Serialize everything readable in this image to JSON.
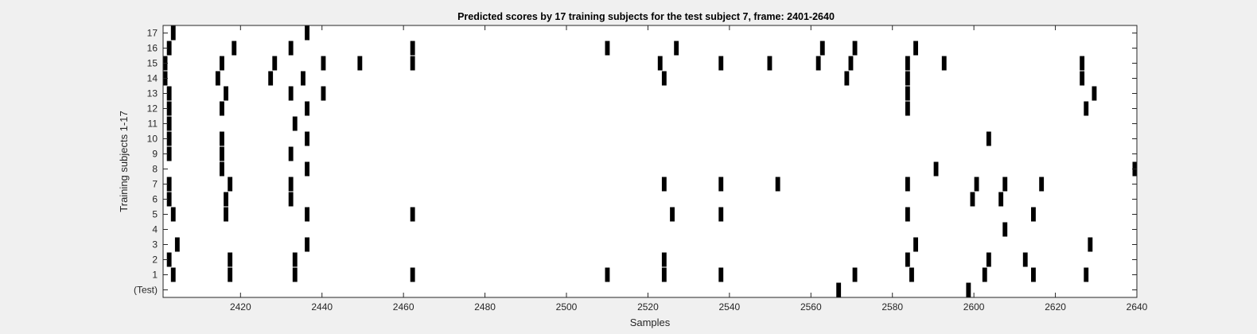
{
  "window": {
    "background": "#f0f0f0"
  },
  "chart_data": {
    "type": "raster",
    "title": "Predicted scores by 17 training subjects for the test subject 7, frame: 2401-2640",
    "xlabel": "Samples",
    "ylabel": "Training subjects 1-17",
    "xlim": [
      2401,
      2640
    ],
    "xticks": [
      2420,
      2440,
      2460,
      2480,
      2500,
      2520,
      2540,
      2560,
      2580,
      2600,
      2620,
      2640
    ],
    "rows": [
      "(Test)",
      "1",
      "2",
      "3",
      "4",
      "5",
      "6",
      "7",
      "8",
      "9",
      "10",
      "11",
      "12",
      "13",
      "14",
      "15",
      "16",
      "17"
    ],
    "grid": false,
    "colors": {
      "mark": "#000000",
      "axes_bg": "#ffffff",
      "axis": "#262626"
    },
    "marks": [
      {
        "row": "(Test)",
        "x": [
          2567,
          2599
        ]
      },
      {
        "row": "1",
        "x": [
          2403,
          2417,
          2433,
          2462,
          2510,
          2524,
          2538,
          2571,
          2585,
          2603,
          2615,
          2628
        ]
      },
      {
        "row": "2",
        "x": [
          2402,
          2417,
          2433,
          2524,
          2584,
          2604,
          2613
        ]
      },
      {
        "row": "3",
        "x": [
          2404,
          2436,
          2586,
          2629
        ]
      },
      {
        "row": "4",
        "x": [
          2608
        ]
      },
      {
        "row": "5",
        "x": [
          2403,
          2416,
          2436,
          2462,
          2526,
          2538,
          2584,
          2615
        ]
      },
      {
        "row": "6",
        "x": [
          2402,
          2416,
          2432,
          2600,
          2607
        ]
      },
      {
        "row": "7",
        "x": [
          2402,
          2417,
          2432,
          2524,
          2538,
          2552,
          2584,
          2601,
          2608,
          2617
        ]
      },
      {
        "row": "8",
        "x": [
          2415,
          2436,
          2591,
          2640
        ]
      },
      {
        "row": "9",
        "x": [
          2402,
          2415,
          2432
        ]
      },
      {
        "row": "10",
        "x": [
          2402,
          2415,
          2436,
          2604
        ]
      },
      {
        "row": "11",
        "x": [
          2402,
          2433
        ]
      },
      {
        "row": "12",
        "x": [
          2402,
          2415,
          2436,
          2584,
          2628
        ]
      },
      {
        "row": "13",
        "x": [
          2402,
          2416,
          2432,
          2440,
          2584,
          2630,
          2641
        ]
      },
      {
        "row": "14",
        "x": [
          2401,
          2414,
          2427,
          2435,
          2524,
          2569,
          2584,
          2627
        ]
      },
      {
        "row": "15",
        "x": [
          2401,
          2415,
          2428,
          2440,
          2449,
          2462,
          2523,
          2538,
          2550,
          2562,
          2570,
          2584,
          2593,
          2627,
          2641
        ]
      },
      {
        "row": "16",
        "x": [
          2402,
          2418,
          2432,
          2462,
          2510,
          2527,
          2563,
          2571,
          2586
        ]
      },
      {
        "row": "17",
        "x": [
          2403,
          2436
        ]
      }
    ]
  }
}
